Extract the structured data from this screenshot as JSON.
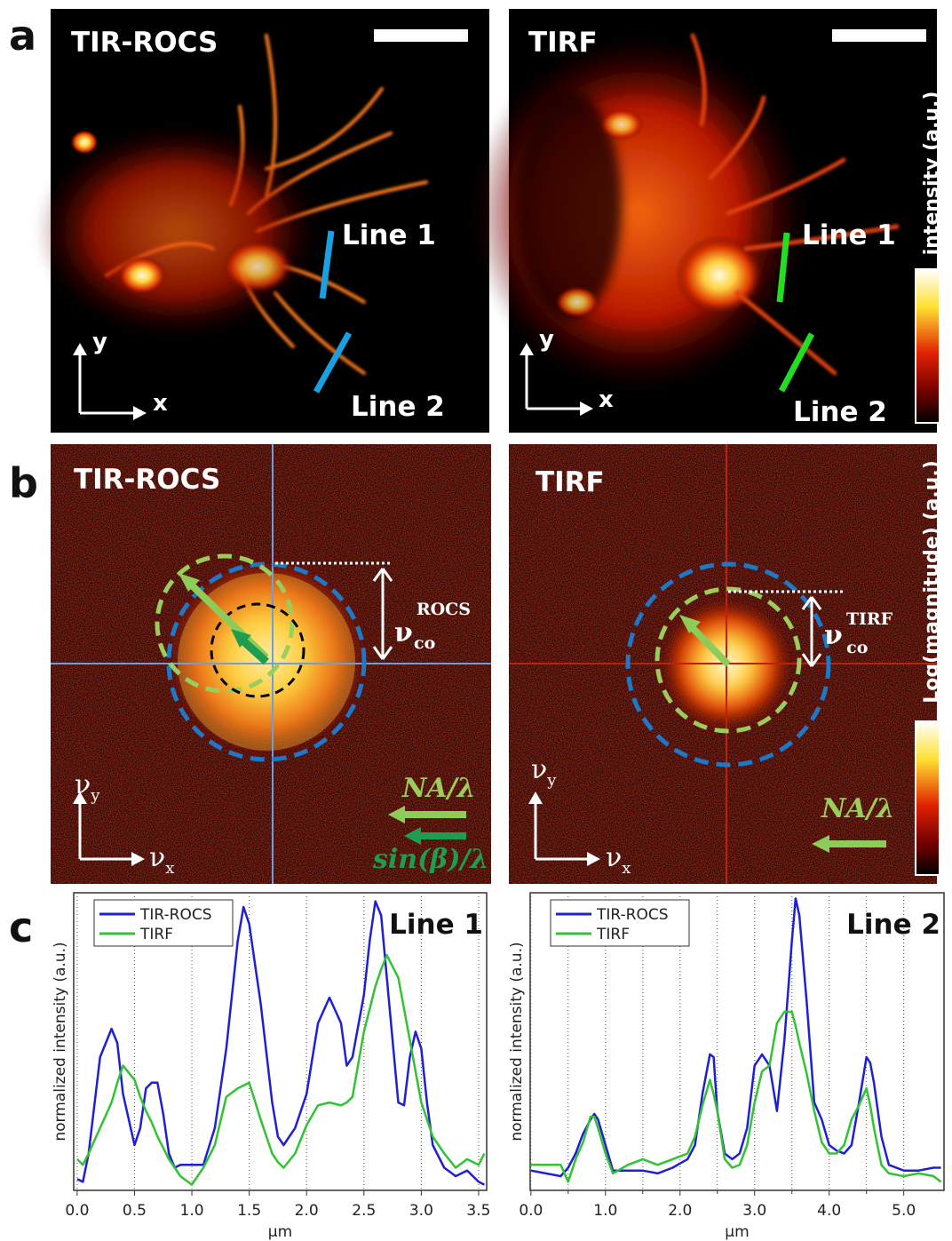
{
  "figure": {
    "panel_labels": [
      "a",
      "b",
      "c"
    ],
    "a": {
      "left_title": "TIR-ROCS",
      "right_title": "TIRF",
      "line1": "Line 1",
      "line2": "Line 2",
      "axis_x": "x",
      "axis_y": "y",
      "colorbar": "intensity (a.u.)"
    },
    "b": {
      "left_title": "TIR-ROCS",
      "right_title": "TIRF",
      "nu": "ν",
      "sub_x": "x",
      "sub_y": "y",
      "co": "co",
      "rocs": "ROCS",
      "tirf": "TIRF",
      "na": "NA/λ",
      "sinb": "sin(β)/λ",
      "colorbar": "Log(magnitude) (a.u.)"
    }
  },
  "chart_data": [
    {
      "type": "line",
      "annotation": "Line 1",
      "x_label": "µm",
      "y_label": "normalized intensity (a.u.)",
      "legend": "upper left",
      "grid": true,
      "xlim": [
        -0.03,
        3.57
      ],
      "ylim": [
        0,
        1.05
      ],
      "xticks": [
        {
          "value": 0,
          "label": "0.0"
        },
        {
          "value": 0.5,
          "label": "0.5"
        },
        {
          "value": 1,
          "label": "1.0"
        },
        {
          "value": 1.5,
          "label": "1.5"
        },
        {
          "value": 2,
          "label": "2.0"
        },
        {
          "value": 2.5,
          "label": "2.5"
        },
        {
          "value": 3,
          "label": "3.0"
        },
        {
          "value": 3.5,
          "label": "3.5"
        }
      ],
      "x": [
        0,
        0.05,
        0.1,
        0.2,
        0.3,
        0.35,
        0.4,
        0.5,
        0.55,
        0.6,
        0.65,
        0.7,
        0.75,
        0.8,
        0.85,
        0.9,
        1.0,
        1.1,
        1.2,
        1.3,
        1.4,
        1.45,
        1.5,
        1.6,
        1.7,
        1.75,
        1.8,
        1.9,
        2.0,
        2.1,
        2.2,
        2.3,
        2.35,
        2.4,
        2.5,
        2.55,
        2.6,
        2.65,
        2.7,
        2.8,
        2.85,
        2.9,
        2.95,
        3.0,
        3.05,
        3.1,
        3.2,
        3.3,
        3.4,
        3.5,
        3.55
      ],
      "series": [
        {
          "name": "TIR-ROCS",
          "color": "#1f1fd6",
          "values": [
            0.04,
            0.03,
            0.13,
            0.47,
            0.57,
            0.52,
            0.34,
            0.16,
            0.22,
            0.36,
            0.38,
            0.38,
            0.27,
            0.13,
            0.08,
            0.09,
            0.09,
            0.09,
            0.22,
            0.5,
            0.88,
            1.0,
            0.94,
            0.66,
            0.31,
            0.19,
            0.16,
            0.22,
            0.34,
            0.59,
            0.68,
            0.59,
            0.44,
            0.47,
            0.69,
            0.88,
            1.02,
            0.97,
            0.75,
            0.31,
            0.3,
            0.47,
            0.56,
            0.5,
            0.31,
            0.16,
            0.08,
            0.05,
            0.07,
            0.03,
            0.02
          ]
        },
        {
          "name": "TIRF",
          "color": "#33c233",
          "values": [
            0.11,
            0.09,
            0.13,
            0.22,
            0.31,
            0.38,
            0.44,
            0.39,
            0.33,
            0.28,
            0.24,
            0.19,
            0.15,
            0.11,
            0.08,
            0.05,
            0.02,
            0.08,
            0.16,
            0.33,
            0.36,
            0.37,
            0.38,
            0.25,
            0.13,
            0.1,
            0.08,
            0.13,
            0.23,
            0.3,
            0.31,
            0.3,
            0.31,
            0.33,
            0.56,
            0.64,
            0.72,
            0.78,
            0.83,
            0.75,
            0.64,
            0.53,
            0.42,
            0.31,
            0.25,
            0.19,
            0.13,
            0.08,
            0.11,
            0.09,
            0.13
          ]
        }
      ]
    },
    {
      "type": "line",
      "annotation": "Line 2",
      "x_label": "µm",
      "y_label": "normalized intensity (a.u.)",
      "legend": "upper left",
      "grid": true,
      "xlim": [
        -0.01,
        5.54
      ],
      "ylim": [
        0,
        1.05
      ],
      "xticks": [
        {
          "value": 0,
          "label": "0.0"
        },
        {
          "value": 1,
          "label": "1.0"
        },
        {
          "value": 2,
          "label": "2.0"
        },
        {
          "value": 3,
          "label": "3.0"
        },
        {
          "value": 4,
          "label": "4.0"
        },
        {
          "value": 5,
          "label": "5.0"
        }
      ],
      "xminor": [
        0.5,
        1.5,
        2.5,
        3.5,
        4.5
      ],
      "x": [
        0,
        0.2,
        0.4,
        0.5,
        0.6,
        0.7,
        0.8,
        0.85,
        0.9,
        1.0,
        1.1,
        1.3,
        1.5,
        1.7,
        1.9,
        2.1,
        2.2,
        2.3,
        2.4,
        2.45,
        2.5,
        2.6,
        2.7,
        2.8,
        2.9,
        3.0,
        3.1,
        3.2,
        3.3,
        3.4,
        3.5,
        3.55,
        3.6,
        3.7,
        3.8,
        3.9,
        4.0,
        4.1,
        4.2,
        4.3,
        4.4,
        4.5,
        4.55,
        4.6,
        4.7,
        4.8,
        5.0,
        5.2,
        5.4,
        5.5
      ],
      "series": [
        {
          "name": "TIR-ROCS",
          "color": "#1f1fd6",
          "values": [
            0.07,
            0.06,
            0.05,
            0.08,
            0.13,
            0.2,
            0.25,
            0.27,
            0.25,
            0.16,
            0.07,
            0.07,
            0.07,
            0.06,
            0.08,
            0.11,
            0.16,
            0.34,
            0.48,
            0.47,
            0.28,
            0.13,
            0.11,
            0.13,
            0.22,
            0.44,
            0.48,
            0.44,
            0.28,
            0.53,
            0.88,
            1.03,
            0.97,
            0.66,
            0.31,
            0.25,
            0.16,
            0.14,
            0.13,
            0.16,
            0.31,
            0.47,
            0.45,
            0.38,
            0.19,
            0.09,
            0.07,
            0.07,
            0.08,
            0.08
          ]
        },
        {
          "name": "TIRF",
          "color": "#33c233",
          "values": [
            0.09,
            0.09,
            0.09,
            0.03,
            0.11,
            0.17,
            0.26,
            0.26,
            0.22,
            0.13,
            0.06,
            0.09,
            0.11,
            0.09,
            0.11,
            0.13,
            0.19,
            0.3,
            0.39,
            0.34,
            0.28,
            0.11,
            0.08,
            0.09,
            0.16,
            0.31,
            0.42,
            0.44,
            0.59,
            0.63,
            0.63,
            0.58,
            0.52,
            0.41,
            0.28,
            0.17,
            0.13,
            0.13,
            0.16,
            0.25,
            0.3,
            0.36,
            0.3,
            0.22,
            0.09,
            0.06,
            0.05,
            0.06,
            0.05,
            0.03
          ]
        }
      ]
    }
  ]
}
